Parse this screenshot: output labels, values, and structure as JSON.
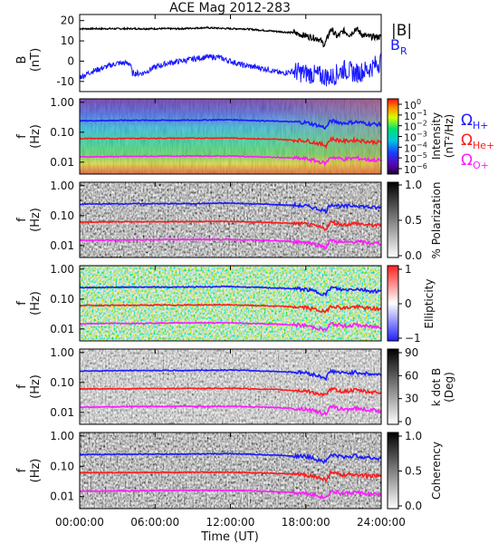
{
  "title": "ACE Mag 2012-283",
  "x_axis": {
    "label": "Time (UT)",
    "ticks": [
      "00:00:00",
      "06:00:00",
      "12:00:00",
      "18:00:00",
      "24:00:00"
    ]
  },
  "panel_b": {
    "ylabel_top": "B",
    "ylabel_bottom": "(nT)",
    "yticks": [
      "20",
      "10",
      "0",
      "-10"
    ],
    "legend_b": "|B|",
    "legend_br": "B",
    "legend_br_sub": "R",
    "color_b": "#000000",
    "color_br": "#1a1aff"
  },
  "freq_axis": {
    "ylabel_top": "f",
    "ylabel_bottom": "(Hz)",
    "ticks": [
      "1.00",
      "0.10",
      "0.01"
    ]
  },
  "gyro_lines": {
    "h_label": "Ω",
    "h_sub": "H+",
    "he_label": "Ω",
    "he_sub": "He+",
    "o_label": "Ω",
    "o_sub": "O+",
    "h_color": "#1a1aff",
    "he_color": "#ff1a1a",
    "o_color": "#ff1aff"
  },
  "colorbars": {
    "intensity": {
      "label_line1": "Intensity",
      "label_line2": "(nT²/Hz)",
      "ticks": [
        {
          "base": "10",
          "exp": "0"
        },
        {
          "base": "10",
          "exp": "−1"
        },
        {
          "base": "10",
          "exp": "−2"
        },
        {
          "base": "10",
          "exp": "−3"
        },
        {
          "base": "10",
          "exp": "−4"
        },
        {
          "base": "10",
          "exp": "−5"
        },
        {
          "base": "10",
          "exp": "−6"
        }
      ]
    },
    "polarization": {
      "label": "% Polarization",
      "ticks": [
        "1.0",
        "0.5",
        "0.0"
      ]
    },
    "ellipticity": {
      "label": "Ellipticity",
      "ticks": [
        "1",
        "0",
        "−1"
      ]
    },
    "kdotb": {
      "label_line1": "k dot B",
      "label_line2": "(Deg)",
      "ticks": [
        "90",
        "60",
        "30",
        "0"
      ]
    },
    "coherency": {
      "label": "Coherency",
      "ticks": [
        "1.0",
        "0.5",
        "0.0"
      ]
    }
  },
  "chart_data": [
    {
      "type": "line",
      "panel": "magnetic_field",
      "x_unit": "hours UT",
      "xlim": [
        0,
        24
      ],
      "ylim": [
        -15,
        23
      ],
      "series": [
        {
          "name": "|B|",
          "x": [
            0,
            2,
            4,
            6,
            8,
            10,
            12,
            13,
            14,
            15,
            16,
            17,
            18,
            19,
            19.5,
            20,
            20.5,
            21,
            21.5,
            22,
            22.5,
            23,
            24
          ],
          "y": [
            16,
            16,
            16,
            16,
            16,
            16.5,
            16,
            16,
            15.5,
            15,
            14.5,
            14,
            12.5,
            11,
            8,
            16,
            12,
            15,
            13,
            16,
            13,
            12,
            12
          ]
        },
        {
          "name": "B",
          "x": [
            0,
            1,
            2,
            3,
            4,
            4.2,
            5,
            6,
            7,
            8,
            9,
            10,
            11,
            12,
            13,
            14,
            15,
            16,
            17,
            18,
            19,
            20,
            21,
            22,
            23,
            24
          ],
          "y": [
            -8,
            -5,
            -3,
            -1,
            -1,
            -6,
            -6,
            -3,
            -1,
            0,
            1,
            2,
            2,
            0,
            -2,
            -3,
            -4,
            -6,
            -5,
            -6,
            -7,
            -8,
            -4,
            -6,
            -4,
            0
          ]
        }
      ]
    },
    {
      "type": "line",
      "panel": "gyrofrequencies",
      "x_unit": "hours UT",
      "y_unit": "Hz",
      "yscale": "log",
      "ylim": [
        0.004,
        1.3
      ],
      "series": [
        {
          "name": "H+",
          "x": [
            0,
            4,
            8,
            12,
            16,
            18,
            19.6,
            20,
            21,
            22,
            23,
            24
          ],
          "y": [
            0.24,
            0.25,
            0.25,
            0.26,
            0.23,
            0.21,
            0.14,
            0.24,
            0.2,
            0.22,
            0.19,
            0.18
          ]
        },
        {
          "name": "He+",
          "x": [
            0,
            4,
            8,
            12,
            16,
            18,
            19.6,
            20,
            21,
            22,
            23,
            24
          ],
          "y": [
            0.061,
            0.062,
            0.063,
            0.064,
            0.057,
            0.052,
            0.036,
            0.06,
            0.05,
            0.055,
            0.048,
            0.046
          ]
        },
        {
          "name": "O+",
          "x": [
            0,
            4,
            8,
            12,
            16,
            18,
            19.6,
            20,
            21,
            22,
            23,
            24
          ],
          "y": [
            0.015,
            0.0155,
            0.016,
            0.016,
            0.0143,
            0.013,
            0.009,
            0.015,
            0.0125,
            0.0138,
            0.012,
            0.0115
          ]
        }
      ]
    }
  ]
}
